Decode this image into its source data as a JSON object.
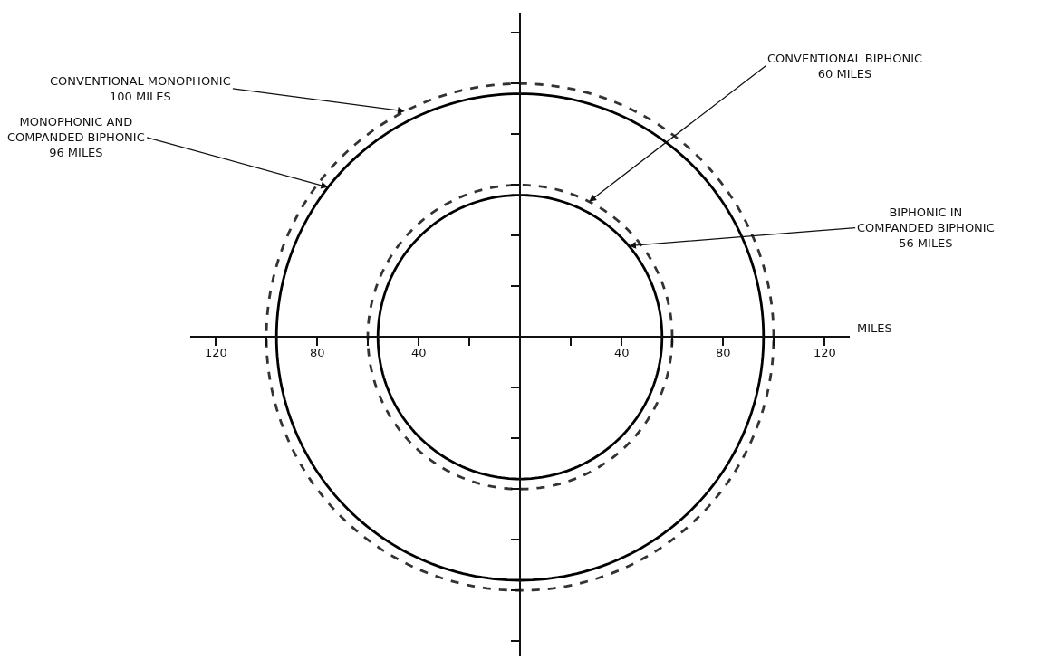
{
  "chart_data": {
    "type": "other",
    "xlabel": "MILES",
    "annotations": [
      "120",
      "80",
      "40",
      "40",
      "80",
      "120"
    ],
    "series": [
      {
        "name": "CONVENTIONAL MONOPHONIC",
        "values": [
          100
        ],
        "value_labels": [
          "100 MILES"
        ],
        "color": "#333333",
        "line_style": "dashed"
      },
      {
        "name": "MONOPHONIC AND\nCOMPANDED BIPHONIC",
        "values": [
          96
        ],
        "value_labels": [
          "96 MILES"
        ],
        "color": "#000000",
        "line_style": "solid"
      },
      {
        "name": "CONVENTIONAL BIPHONIC",
        "values": [
          60
        ],
        "value_labels": [
          "60 MILES"
        ],
        "color": "#333333",
        "line_style": "dashed"
      },
      {
        "name": "BIPHONIC IN\nCOMPANDED BIPHONIC",
        "values": [
          56
        ],
        "value_labels": [
          "56 MILES"
        ],
        "color": "#000000",
        "line_style": "solid"
      }
    ]
  }
}
